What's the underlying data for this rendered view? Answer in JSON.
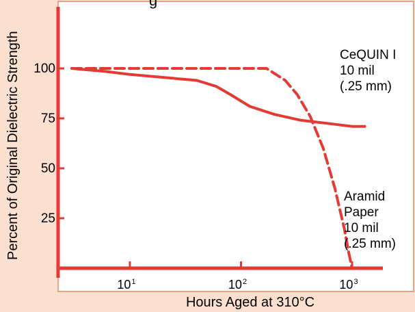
{
  "chart_data": {
    "type": "line",
    "title": "",
    "title_fragment": "g",
    "xlabel": "Hours Aged at 310°C",
    "ylabel": "Percent of Original Dielectric Strength",
    "x_scale": "log",
    "xlim": [
      2.5,
      2100
    ],
    "ylim": [
      0,
      110
    ],
    "x_ticks": [
      {
        "value": 10,
        "base": "10",
        "exponent": "1"
      },
      {
        "value": 100,
        "base": "10",
        "exponent": "2"
      },
      {
        "value": 1000,
        "base": "10",
        "exponent": "3"
      }
    ],
    "y_ticks": [
      {
        "value": 100,
        "label": "100"
      },
      {
        "value": 75,
        "label": "75"
      },
      {
        "value": 50,
        "label": "50"
      },
      {
        "value": 25,
        "label": "25"
      }
    ],
    "series": [
      {
        "name": "CeQUIN I 10 mil (.25 mm)",
        "style": "solid",
        "x": [
          3,
          6,
          10,
          20,
          40,
          60,
          80,
          120,
          200,
          350,
          600,
          1000,
          1300
        ],
        "y": [
          100,
          98.5,
          97,
          95.5,
          94,
          91,
          87,
          81,
          77,
          74,
          72.5,
          71,
          71
        ]
      },
      {
        "name": "Aramid Paper 10 mil (.25 mm)",
        "style": "dashed",
        "x": [
          3,
          30,
          100,
          170,
          250,
          320,
          420,
          550,
          700,
          850,
          930,
          1000
        ],
        "y": [
          100,
          100,
          100,
          100,
          94,
          87,
          76,
          60,
          40,
          20,
          8,
          0
        ]
      }
    ],
    "annotations": [
      {
        "for": "cequin",
        "lines": [
          "CeQUIN I",
          "10 mil",
          "(.25 mm)"
        ]
      },
      {
        "for": "aramid",
        "lines": [
          "Aramid",
          "Paper",
          "10 mil",
          "(.25 mm)"
        ]
      }
    ],
    "grid": false,
    "legend": "none",
    "colors": {
      "background": "#fbe0cf",
      "plot_area": "#ffffff",
      "frame": "#e8a488",
      "axis": "#e43a33",
      "line": "#e43a33",
      "text": "#000000"
    }
  }
}
